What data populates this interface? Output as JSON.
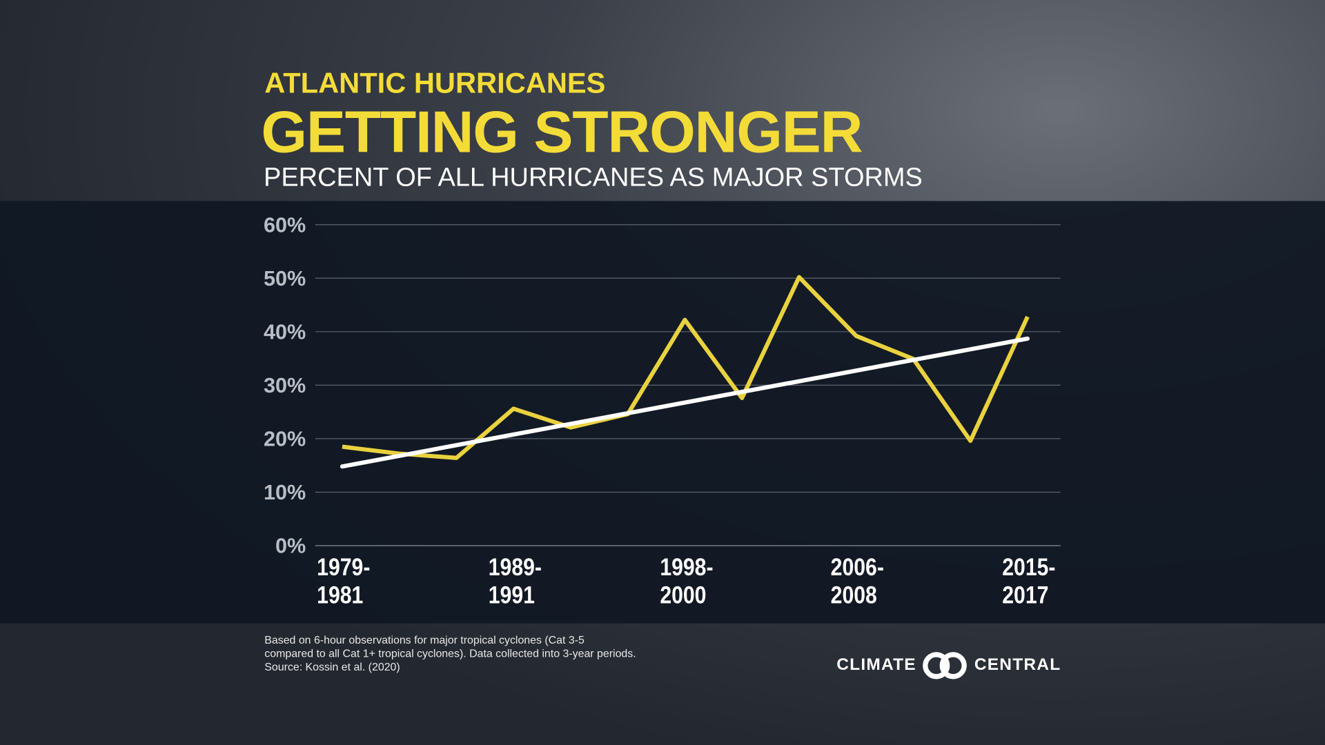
{
  "header": {
    "kicker": "ATLANTIC HURRICANES",
    "title": "GETTING STRONGER",
    "subtitle": "PERCENT OF ALL HURRICANES AS MAJOR STORMS"
  },
  "chart_data": {
    "type": "line",
    "categories": [
      "1979-\n1981",
      null,
      null,
      "1989-\n1991",
      null,
      null,
      "1998-\n2000",
      null,
      null,
      "2006-\n2008",
      null,
      null,
      "2015-\n2017"
    ],
    "series": [
      {
        "color": "#e9d23e",
        "values": [
          18.5,
          17.2,
          16.4,
          25.6,
          22.1,
          24.6,
          42.2,
          27.6,
          50.2,
          39.2,
          34.9,
          19.6,
          42.8
        ]
      }
    ],
    "trendline": {
      "color": "#ffffff",
      "start": 14.8,
      "end": 38.7
    },
    "ylim": [
      0,
      60
    ],
    "yticks": [
      {
        "value": 0,
        "label": "0%"
      },
      {
        "value": 10,
        "label": "10%"
      },
      {
        "value": 20,
        "label": "20%"
      },
      {
        "value": 30,
        "label": "30%"
      },
      {
        "value": 40,
        "label": "40%"
      },
      {
        "value": 50,
        "label": "50%"
      },
      {
        "value": 60,
        "label": "60%"
      }
    ],
    "grid": true
  },
  "footer": {
    "notes": [
      "Based on 6-hour observations for major tropical cyclones (Cat 3-5",
      "compared to all Cat 1+ tropical cyclones). Data collected into 3-year periods.",
      "Source: Kossin et al. (2020)"
    ],
    "logo_left": "CLIMATE",
    "logo_right": "CENTRAL"
  }
}
